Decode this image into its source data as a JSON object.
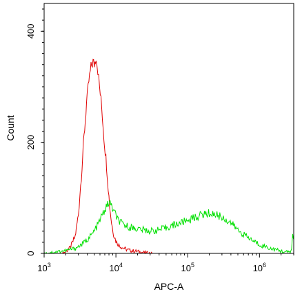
{
  "chart_data": {
    "type": "line",
    "title": "",
    "xlabel": "APC-A",
    "ylabel": "Count",
    "x_scale": "log",
    "xlim": [
      1000,
      3000000
    ],
    "ylim": [
      0,
      450
    ],
    "grid": false,
    "legend": "none",
    "x_ticks": [
      {
        "value": 1000,
        "base": "10",
        "exp": "3"
      },
      {
        "value": 10000,
        "base": "10",
        "exp": "4"
      },
      {
        "value": 100000,
        "base": "10",
        "exp": "5"
      },
      {
        "value": 1000000,
        "base": "10",
        "exp": "6"
      }
    ],
    "y_ticks": [
      {
        "value": 0,
        "label": "0"
      },
      {
        "value": 200,
        "label": "200"
      },
      {
        "value": 400,
        "label": "400"
      }
    ],
    "series": [
      {
        "color": "#e00000",
        "x": [
          1800,
          2000,
          2300,
          2700,
          3000,
          3300,
          3600,
          3900,
          4200,
          4500,
          4800,
          5000,
          5300,
          5600,
          5900,
          6200,
          6500,
          6800,
          7100,
          7400,
          7800,
          8200,
          8700,
          9300,
          10000,
          11000,
          12500,
          14000,
          16000,
          19000,
          23000,
          28000,
          32000
        ],
        "y": [
          0,
          3,
          10,
          30,
          70,
          140,
          210,
          270,
          310,
          335,
          345,
          340,
          355,
          330,
          300,
          275,
          245,
          210,
          185,
          160,
          120,
          85,
          55,
          35,
          22,
          15,
          10,
          7,
          5,
          4,
          2,
          1,
          0
        ]
      },
      {
        "color": "#00e000",
        "x": [
          1000,
          1500,
          2000,
          2500,
          3000,
          3500,
          4000,
          4500,
          5000,
          5500,
          6000,
          6500,
          7000,
          7500,
          8000,
          8500,
          9000,
          10000,
          11000,
          12500,
          15000,
          20000,
          25000,
          30000,
          40000,
          50000,
          60000,
          80000,
          100000,
          130000,
          160000,
          200000,
          250000,
          300000,
          400000,
          500000,
          700000,
          1000000,
          1500000,
          2000000,
          2500000,
          2800000,
          2900000,
          3000000
        ],
        "y": [
          0,
          3,
          5,
          8,
          12,
          18,
          25,
          32,
          40,
          50,
          60,
          70,
          78,
          85,
          92,
          88,
          80,
          68,
          58,
          52,
          48,
          44,
          42,
          40,
          42,
          46,
          50,
          55,
          60,
          65,
          70,
          72,
          70,
          65,
          55,
          42,
          28,
          16,
          8,
          4,
          2,
          5,
          35,
          25
        ]
      }
    ]
  }
}
